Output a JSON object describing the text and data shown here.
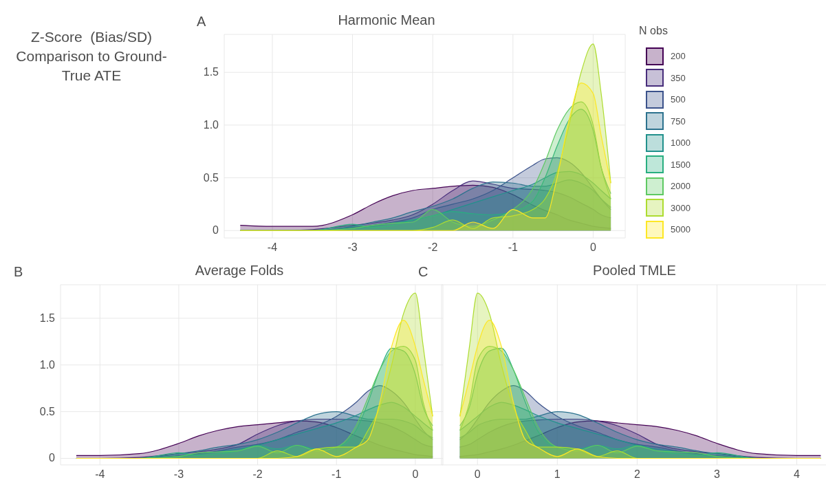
{
  "chart_data": [
    {
      "type": "area",
      "title": "Harmonic Mean",
      "annotations": [
        "A",
        "Z-Score  (Bias/SD) Comparison to Ground-True ATE"
      ],
      "legend_title": "N obs",
      "legend": "right",
      "grid": true,
      "x": [
        -4.4,
        -4,
        -3.5,
        -3,
        -2.75,
        -2.5,
        -2.25,
        -2,
        -1.75,
        -1.5,
        -1.25,
        -1,
        -0.75,
        -0.6,
        -0.45,
        -0.3,
        -0.15,
        0,
        0.1,
        0.22
      ],
      "xlim": [
        -4.6,
        0.4
      ],
      "xticks": [
        -4,
        -3,
        -2,
        -1,
        0
      ],
      "ylim": [
        -0.07,
        1.86
      ],
      "yticks": [
        0,
        0.5,
        {
          "value": 1,
          "label": "1.0"
        },
        1.5
      ],
      "series": [
        {
          "name": "200",
          "color": "#440154",
          "values": [
            0.05,
            0.04,
            0.04,
            0.15,
            0.25,
            0.33,
            0.38,
            0.4,
            0.42,
            0.43,
            0.41,
            0.34,
            0.24,
            0.19,
            0.15,
            0.1,
            0.07,
            0.04,
            0.03,
            0.02
          ]
        },
        {
          "name": "350",
          "color": "#472d7b",
          "values": [
            0,
            0,
            0.01,
            0.05,
            0.07,
            0.1,
            0.15,
            0.25,
            0.38,
            0.47,
            0.44,
            0.4,
            0.39,
            0.38,
            0.36,
            0.32,
            0.26,
            0.2,
            0.15,
            0.12
          ]
        },
        {
          "name": "500",
          "color": "#3b528b",
          "values": [
            0,
            0,
            0,
            0.03,
            0.05,
            0.08,
            0.12,
            0.2,
            0.25,
            0.3,
            0.38,
            0.5,
            0.62,
            0.68,
            0.69,
            0.65,
            0.55,
            0.4,
            0.3,
            0.2
          ]
        },
        {
          "name": "750",
          "color": "#2c728e",
          "values": [
            0,
            0,
            0,
            0.04,
            0.08,
            0.12,
            0.18,
            0.23,
            0.3,
            0.4,
            0.46,
            0.45,
            0.42,
            0.42,
            0.45,
            0.48,
            0.45,
            0.38,
            0.3,
            0.22
          ]
        },
        {
          "name": "1000",
          "color": "#21918c",
          "values": [
            0,
            0,
            0,
            0.02,
            0.04,
            0.07,
            0.1,
            0.14,
            0.2,
            0.26,
            0.32,
            0.38,
            0.44,
            0.5,
            0.55,
            0.56,
            0.53,
            0.45,
            0.38,
            0.3
          ]
        },
        {
          "name": "1500",
          "color": "#28ae80",
          "values": [
            0,
            0,
            0,
            0.06,
            0.03,
            0.05,
            0.1,
            0.14,
            0.18,
            0.16,
            0.15,
            0.18,
            0.28,
            0.5,
            0.8,
            1.05,
            1.15,
            0.95,
            0.6,
            0.35
          ]
        },
        {
          "name": "2000",
          "color": "#5ec962",
          "values": [
            0,
            0,
            0,
            0.02,
            0.05,
            0.07,
            0.08,
            0.2,
            0.08,
            0.04,
            0.1,
            0.2,
            0.4,
            0.65,
            0.95,
            1.15,
            1.22,
            1.0,
            0.6,
            0.3
          ]
        },
        {
          "name": "3000",
          "color": "#addc30",
          "values": [
            0,
            0,
            0,
            0,
            0,
            0,
            0,
            0.03,
            0.1,
            0.02,
            0.12,
            0.14,
            0.2,
            0.3,
            0.55,
            1.0,
            1.5,
            1.77,
            1.3,
            0.45
          ]
        },
        {
          "name": "5000",
          "color": "#fde725",
          "values": [
            0,
            0,
            0,
            0,
            0,
            0,
            0,
            0,
            0,
            0.08,
            0.02,
            0.2,
            0.12,
            0.12,
            0.5,
            1.05,
            1.4,
            1.3,
            0.9,
            0.45
          ]
        }
      ]
    },
    {
      "type": "area",
      "title": "Average Folds",
      "annotations": [
        "B"
      ],
      "grid": true,
      "x": [
        -4.3,
        -4,
        -3.5,
        -3,
        -2.75,
        -2.5,
        -2.25,
        -2,
        -1.75,
        -1.5,
        -1.25,
        -1,
        -0.75,
        -0.6,
        -0.45,
        -0.3,
        -0.15,
        0,
        0.1,
        0.22
      ],
      "xlim": [
        -4.5,
        0.35
      ],
      "xticks": [
        -4,
        -3,
        -2,
        -1,
        0
      ],
      "ylim": [
        -0.07,
        1.86
      ],
      "yticks": [
        0,
        0.5,
        {
          "value": 1,
          "label": "1.0"
        },
        1.5
      ],
      "series": [
        {
          "color": "#440154",
          "values": [
            0.03,
            0.03,
            0.05,
            0.16,
            0.24,
            0.3,
            0.34,
            0.36,
            0.38,
            0.4,
            0.39,
            0.33,
            0.24,
            0.19,
            0.14,
            0.1,
            0.07,
            0.04,
            0.03,
            0.02
          ]
        },
        {
          "color": "#472d7b",
          "values": [
            0,
            0,
            0.01,
            0.05,
            0.07,
            0.1,
            0.15,
            0.26,
            0.35,
            0.4,
            0.42,
            0.42,
            0.41,
            0.4,
            0.38,
            0.34,
            0.28,
            0.2,
            0.15,
            0.12
          ]
        },
        {
          "color": "#3b528b",
          "values": [
            0,
            0,
            0,
            0.03,
            0.05,
            0.08,
            0.12,
            0.15,
            0.2,
            0.28,
            0.35,
            0.45,
            0.6,
            0.72,
            0.78,
            0.72,
            0.6,
            0.42,
            0.3,
            0.2
          ]
        },
        {
          "color": "#2c728e",
          "values": [
            0,
            0,
            0,
            0.05,
            0.08,
            0.12,
            0.15,
            0.2,
            0.28,
            0.38,
            0.47,
            0.5,
            0.45,
            0.42,
            0.42,
            0.42,
            0.4,
            0.35,
            0.28,
            0.22
          ]
        },
        {
          "color": "#21918c",
          "values": [
            0,
            0,
            0,
            0.02,
            0.04,
            0.07,
            0.1,
            0.14,
            0.2,
            0.26,
            0.32,
            0.38,
            0.46,
            0.52,
            0.57,
            0.6,
            0.55,
            0.45,
            0.38,
            0.3
          ]
        },
        {
          "color": "#28ae80",
          "values": [
            0,
            0,
            0,
            0.06,
            0.03,
            0.05,
            0.08,
            0.14,
            0.1,
            0.14,
            0.1,
            0.12,
            0.3,
            0.6,
            0.95,
            1.18,
            1.15,
            0.9,
            0.55,
            0.35
          ]
        },
        {
          "color": "#5ec962",
          "values": [
            0,
            0,
            0,
            0.02,
            0.06,
            0.07,
            0.08,
            0.13,
            0.06,
            0.14,
            0.08,
            0.12,
            0.35,
            0.65,
            0.95,
            1.15,
            1.2,
            1.05,
            0.6,
            0.3
          ]
        },
        {
          "color": "#addc30",
          "values": [
            0,
            0,
            0,
            0,
            0,
            0,
            0,
            0,
            0.08,
            0.02,
            0.1,
            0.12,
            0.12,
            0.3,
            0.55,
            1.0,
            1.55,
            1.77,
            1.2,
            0.45
          ]
        },
        {
          "color": "#fde725",
          "values": [
            0,
            0,
            0,
            0,
            0,
            0,
            0,
            0,
            0,
            0.02,
            0.1,
            0.02,
            0.12,
            0.2,
            0.6,
            1.2,
            1.48,
            1.2,
            0.85,
            0.45
          ]
        }
      ]
    },
    {
      "type": "area",
      "title": "Pooled TMLE",
      "annotations": [
        "C"
      ],
      "grid": true,
      "tick_labels": "x",
      "x": [
        -0.22,
        -0.1,
        0,
        0.15,
        0.3,
        0.45,
        0.6,
        0.75,
        1,
        1.25,
        1.5,
        1.75,
        2,
        2.25,
        2.5,
        2.75,
        3,
        3.5,
        4,
        4.3
      ],
      "xlim": [
        -0.45,
        4.4
      ],
      "xticks": [
        0,
        1,
        2,
        3,
        4
      ],
      "ylim": [
        -0.07,
        1.86
      ],
      "yticks": [
        0,
        0.5,
        1,
        1.5
      ],
      "series": [
        {
          "color": "#440154",
          "values": [
            0.02,
            0.03,
            0.04,
            0.07,
            0.1,
            0.14,
            0.19,
            0.24,
            0.33,
            0.39,
            0.4,
            0.38,
            0.36,
            0.34,
            0.3,
            0.24,
            0.16,
            0.05,
            0.03,
            0.03
          ]
        },
        {
          "color": "#472d7b",
          "values": [
            0.12,
            0.15,
            0.2,
            0.28,
            0.34,
            0.38,
            0.4,
            0.41,
            0.42,
            0.42,
            0.4,
            0.35,
            0.26,
            0.15,
            0.1,
            0.07,
            0.05,
            0.01,
            0,
            0
          ]
        },
        {
          "color": "#3b528b",
          "values": [
            0.2,
            0.3,
            0.42,
            0.6,
            0.72,
            0.78,
            0.72,
            0.6,
            0.45,
            0.35,
            0.28,
            0.2,
            0.15,
            0.12,
            0.08,
            0.05,
            0.03,
            0,
            0,
            0
          ]
        },
        {
          "color": "#2c728e",
          "values": [
            0.22,
            0.28,
            0.35,
            0.4,
            0.42,
            0.42,
            0.42,
            0.45,
            0.5,
            0.47,
            0.38,
            0.28,
            0.2,
            0.15,
            0.12,
            0.08,
            0.05,
            0,
            0,
            0
          ]
        },
        {
          "color": "#21918c",
          "values": [
            0.3,
            0.38,
            0.45,
            0.55,
            0.6,
            0.57,
            0.52,
            0.46,
            0.38,
            0.32,
            0.26,
            0.2,
            0.14,
            0.1,
            0.07,
            0.04,
            0.02,
            0,
            0,
            0
          ]
        },
        {
          "color": "#28ae80",
          "values": [
            0.35,
            0.55,
            0.9,
            1.15,
            1.18,
            0.95,
            0.6,
            0.3,
            0.12,
            0.1,
            0.14,
            0.1,
            0.14,
            0.08,
            0.05,
            0.03,
            0.06,
            0,
            0,
            0
          ]
        },
        {
          "color": "#5ec962",
          "values": [
            0.3,
            0.6,
            1.05,
            1.2,
            1.15,
            0.95,
            0.65,
            0.35,
            0.12,
            0.08,
            0.14,
            0.06,
            0.13,
            0.08,
            0.07,
            0.06,
            0.02,
            0,
            0,
            0
          ]
        },
        {
          "color": "#addc30",
          "values": [
            0.45,
            1.2,
            1.77,
            1.55,
            1.0,
            0.55,
            0.3,
            0.12,
            0.12,
            0.1,
            0.02,
            0.08,
            0,
            0,
            0,
            0,
            0,
            0,
            0,
            0
          ]
        },
        {
          "color": "#fde725",
          "values": [
            0.45,
            0.85,
            1.2,
            1.48,
            1.2,
            0.6,
            0.2,
            0.12,
            0.02,
            0.1,
            0.02,
            0,
            0,
            0,
            0,
            0,
            0,
            0,
            0,
            0
          ]
        }
      ]
    }
  ]
}
